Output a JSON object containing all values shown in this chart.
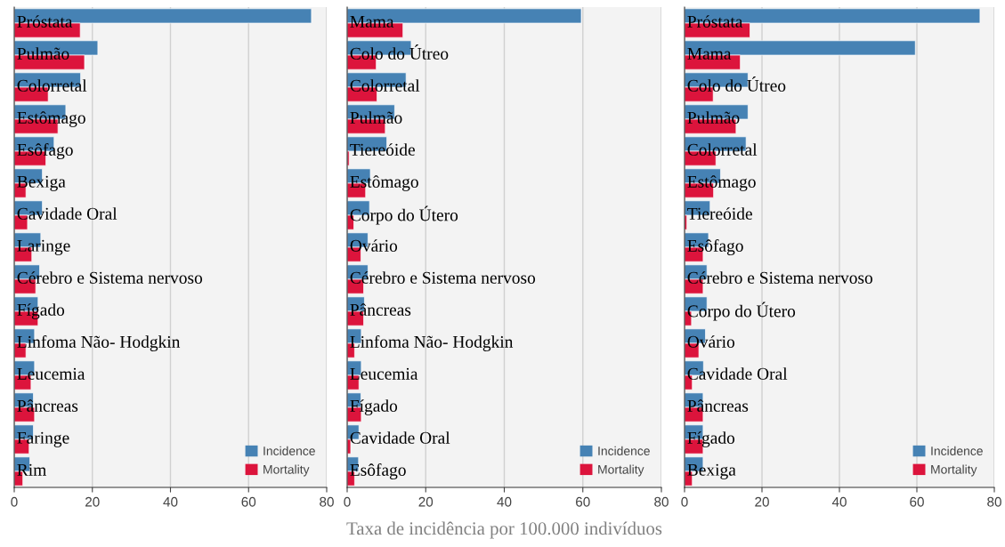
{
  "chart_data": [
    {
      "type": "bar",
      "orientation": "horizontal",
      "categories": [
        "Próstata",
        "Pulmão",
        "Colorretal",
        "Estômago",
        "Esôfago",
        "Bexiga",
        "Cavidade Oral",
        "Laringe",
        "Cérebro e Sistema nervoso",
        "Fígado",
        "Linfoma Não- Hodgkin",
        "Leucemia",
        "Pâncreas",
        "Faringe",
        "Rim"
      ],
      "series": [
        {
          "name": "Incidence",
          "color": "#4682b4",
          "values": [
            76.1,
            21.4,
            17.0,
            13.2,
            10.2,
            7.2,
            7.2,
            6.8,
            6.5,
            6.1,
            5.2,
            5.2,
            4.9,
            4.9,
            4.0
          ]
        },
        {
          "name": "Mortality",
          "color": "#dc143c",
          "values": [
            16.9,
            18.0,
            8.7,
            11.2,
            8.1,
            3.0,
            3.4,
            4.5,
            5.5,
            6.1,
            3.0,
            4.3,
            5.2,
            3.8,
            2.2
          ]
        }
      ],
      "xlim": [
        0,
        80
      ],
      "xticks": [
        0,
        20,
        40,
        60,
        80
      ],
      "grid": "x",
      "legend": "bottom right"
    },
    {
      "type": "bar",
      "orientation": "horizontal",
      "categories": [
        "Mama",
        "Colo do Útreo",
        "Colorretal",
        "Pulmão",
        "Tiereóide",
        "Estômago",
        "Corpo do Útero",
        "Ovário",
        "Cérebro e Sistema nervoso",
        "Pâncreas",
        "Linfoma Não- Hodgkin",
        "Leucemia",
        "Fígado",
        "Cavidade Oral",
        "Esôfago"
      ],
      "series": [
        {
          "name": "Incidence",
          "color": "#4682b4",
          "values": [
            59.6,
            16.3,
            15.0,
            12.1,
            10.1,
            5.9,
            5.7,
            5.3,
            5.3,
            4.4,
            3.6,
            3.6,
            3.5,
            3.0,
            2.9
          ]
        },
        {
          "name": "Mortality",
          "color": "#dc143c",
          "values": [
            14.2,
            7.4,
            7.6,
            9.7,
            0.5,
            4.7,
            1.7,
            3.5,
            4.2,
            4.2,
            1.9,
            3.0,
            3.6,
            0.9,
            1.9
          ]
        }
      ],
      "xlim": [
        0,
        80
      ],
      "xticks": [
        0,
        20,
        40,
        60,
        80
      ],
      "grid": "x",
      "legend": "bottom right",
      "xlabel": "Taxa de incidência por 100.000 indivíduos"
    },
    {
      "type": "bar",
      "orientation": "horizontal",
      "categories": [
        "Próstata",
        "Mama",
        "Colo do Útreo",
        "Pulmão",
        "Colorretal",
        "Estômago",
        "Tiereóide",
        "Esôfago",
        "Cérebro e Sistema nervoso",
        "Corpo do Útero",
        "Ovário",
        "Cavidade Oral",
        "Pâncreas",
        "Fígado",
        "Bexiga"
      ],
      "series": [
        {
          "name": "Incidence",
          "color": "#4682b4",
          "values": [
            76.3,
            59.6,
            16.4,
            16.4,
            15.9,
            9.3,
            6.6,
            6.2,
            5.8,
            5.8,
            5.4,
            4.9,
            4.8,
            4.8,
            4.8
          ]
        },
        {
          "name": "Mortality",
          "color": "#dc143c",
          "values": [
            16.9,
            14.4,
            7.4,
            13.3,
            8.1,
            7.5,
            0.6,
            4.8,
            4.8,
            1.8,
            3.7,
            2.0,
            4.8,
            4.8,
            2.0
          ]
        }
      ],
      "xlim": [
        0,
        80
      ],
      "xticks": [
        0,
        20,
        40,
        60,
        80
      ],
      "grid": "x",
      "legend": "bottom right"
    }
  ]
}
